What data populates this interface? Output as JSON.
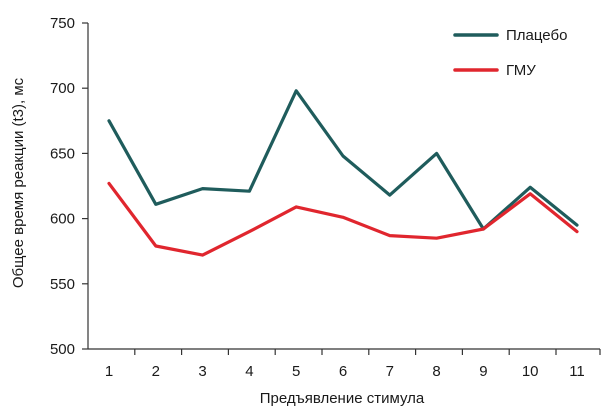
{
  "chart_data": {
    "type": "line",
    "xlabel": "Предъявление стимула",
    "ylabel": "Общее время реакции (t3), мс",
    "x": [
      1,
      2,
      3,
      4,
      5,
      6,
      7,
      8,
      9,
      10,
      11
    ],
    "x_tick_labels": [
      "1",
      "2",
      "3",
      "4",
      "5",
      "6",
      "7",
      "8",
      "9",
      "10",
      "11"
    ],
    "y_ticks": [
      500,
      550,
      600,
      650,
      700,
      750
    ],
    "y_tick_labels": [
      "500",
      "550",
      "600",
      "650",
      "700",
      "750"
    ],
    "ylim": [
      500,
      750
    ],
    "grid": false,
    "legend_position": "top-right",
    "series": [
      {
        "name": "Плацебо",
        "color": "#1f5c5c",
        "values": [
          675,
          611,
          623,
          621,
          698,
          648,
          618,
          650,
          592,
          624,
          595
        ]
      },
      {
        "name": "ГМУ",
        "color": "#e0262e",
        "values": [
          627,
          579,
          572,
          590,
          609,
          601,
          587,
          585,
          592,
          619,
          590
        ]
      }
    ]
  }
}
